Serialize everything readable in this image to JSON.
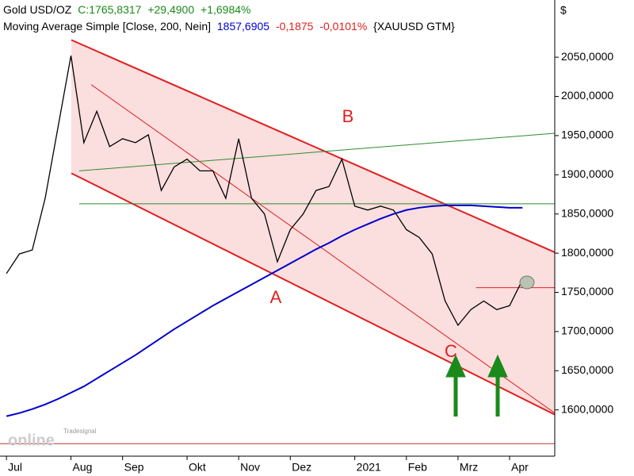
{
  "chart_data": {
    "type": "line",
    "title": "Gold USD/OZ",
    "title_values": [
      "C:1765,8317",
      "+29,4900",
      "+1,6984%"
    ],
    "subtitle": "Moving Average Simple [Close, 200, Nein]",
    "subtitle_values": [
      "1857,6905",
      "-0,1875",
      "-0,0101%"
    ],
    "symbol": "{XAUUSD GTM}",
    "y_axis_label": "$",
    "categories": [
      "Jul",
      null,
      null,
      null,
      null,
      "Aug",
      null,
      null,
      null,
      "Sep",
      null,
      null,
      null,
      null,
      "Okt",
      null,
      null,
      null,
      "Nov",
      null,
      null,
      null,
      "Dez",
      null,
      null,
      null,
      null,
      "2021",
      null,
      null,
      null,
      "Feb",
      null,
      null,
      null,
      "Mrz",
      null,
      null,
      null,
      "Apr",
      null,
      null,
      null
    ],
    "series": [
      {
        "name": "Gold USD/OZ",
        "color": "#000000",
        "values": [
          1774,
          1799,
          1804,
          1870,
          1961,
          2052,
          1941,
          1981,
          1936,
          1946,
          1941,
          1951,
          1880,
          1910,
          1920,
          1905,
          1905,
          1870,
          1946,
          1870,
          1850,
          1789,
          1830,
          1850,
          1880,
          1885,
          1920,
          1860,
          1855,
          1860,
          1855,
          1830,
          1820,
          1799,
          1739,
          1708,
          1728,
          1739,
          1728,
          1733,
          1766,
          null,
          null
        ]
      },
      {
        "name": "Moving Average Simple [Close, 200, Nein]",
        "color": "#0000cc",
        "values": [
          1592,
          1596,
          1601,
          1607,
          1614,
          1622,
          1630,
          1640,
          1650,
          1660,
          1670,
          1681,
          1692,
          1703,
          1713,
          1723,
          1733,
          1742,
          1751,
          1760,
          1769,
          1778,
          1787,
          1796,
          1805,
          1813,
          1822,
          1830,
          1837,
          1844,
          1850,
          1855,
          1858,
          1860,
          1861,
          1861,
          1861,
          1860,
          1859,
          1858,
          1858,
          null,
          null
        ]
      }
    ],
    "trendlines": [
      {
        "color": "#e02020",
        "x": [
          5.03,
          48.6
        ],
        "y": [
          2072,
          1757
        ]
      },
      {
        "color": "#e02020",
        "x": [
          5.03,
          42.5
        ],
        "y": [
          1902,
          1594
        ]
      },
      {
        "color": "#e02020",
        "x": [
          6.57,
          42.5
        ],
        "y": [
          2015,
          1596
        ]
      },
      {
        "color": "#2e8b2e",
        "x": [
          5.64,
          42.5
        ],
        "y": [
          1905,
          1953
        ]
      },
      {
        "color": "#2e8b2e",
        "x": [
          5.64,
          42.5
        ],
        "y": [
          1863,
          1863
        ]
      },
      {
        "color": "#e02020",
        "x": [
          36.4,
          42.5
        ],
        "y": [
          1756,
          1756
        ]
      },
      {
        "color": "#c03030",
        "x": [
          -0.5,
          42.5
        ],
        "y": [
          1557,
          1557
        ]
      }
    ],
    "channel_fill": "#fbdede",
    "annotations": [
      "A",
      "B",
      "C"
    ],
    "watermark": [
      "Tradesignal",
      "online"
    ],
    "ylim": [
      1541,
      2123
    ],
    "yticks": [
      {
        "value": 1600,
        "label": "1600,0000"
      },
      {
        "value": 1650,
        "label": "1650,0000"
      },
      {
        "value": 1700,
        "label": "1700,0000"
      },
      {
        "value": 1750,
        "label": "1750,0000"
      },
      {
        "value": 1800,
        "label": "1800,0000"
      },
      {
        "value": 1850,
        "label": "1850,0000"
      },
      {
        "value": 1900,
        "label": "1900,0000"
      },
      {
        "value": 1950,
        "label": "1950,0000"
      },
      {
        "value": 2000,
        "label": "2000,0000"
      },
      {
        "value": 2050,
        "label": "2050,0000"
      }
    ]
  }
}
